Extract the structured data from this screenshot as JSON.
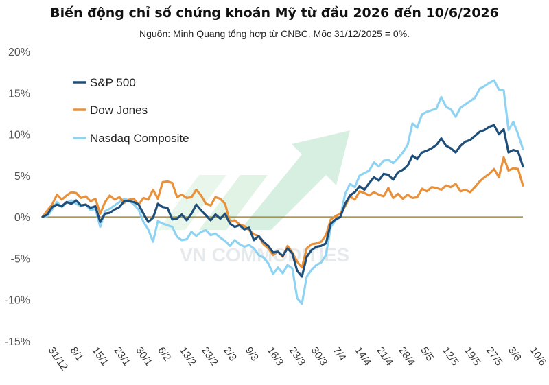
{
  "header": {
    "title": "Biến động chỉ số chứng khoán Mỹ từ đầu 2026 đến 10/6/2026",
    "subtitle": "Nguồn: Minh Quang tổng hợp từ CNBC. Mốc 31/12/2025 = 0%."
  },
  "watermark": "VN COMMODITIES",
  "chart_data": {
    "type": "line",
    "title": "Biến động chỉ số chứng khoán Mỹ từ đầu 2026 đến 10/6/2026",
    "xlabel": "",
    "ylabel": "",
    "ylim": [
      -15,
      20
    ],
    "yticks": [
      20,
      15,
      10,
      5,
      0,
      -5,
      -10,
      -15
    ],
    "ytick_labels": [
      "20%",
      "15%",
      "10%",
      "5%",
      "0%",
      "-5%",
      "-10%",
      "-15%"
    ],
    "x_tick_labels": [
      "31/12",
      "8/1",
      "15/1",
      "23/1",
      "30/1",
      "6/2",
      "13/2",
      "23/2",
      "2/3",
      "9/3",
      "16/3",
      "23/3",
      "30/3",
      "7/4",
      "14/4",
      "21/4",
      "28/4",
      "5/5",
      "12/5",
      "19/5",
      "27/5",
      "3/6",
      "10/6"
    ],
    "legend_position": "top-left",
    "grid": false,
    "series": [
      {
        "name": "S&P 500",
        "color": "#1f4e79",
        "values": [
          0,
          0.3,
          1.2,
          1.5,
          1.3,
          1.8,
          1.6,
          2.0,
          1.4,
          1.5,
          1.1,
          1.3,
          -0.6,
          0.4,
          0.5,
          0.9,
          1.2,
          1.9,
          1.9,
          1.8,
          1.5,
          0.4,
          -0.6,
          -0.1,
          1.6,
          1.2,
          1.1,
          -0.3,
          -0.2,
          0.3,
          -0.4,
          0.4,
          1.5,
          0.8,
          0.2,
          -0.4,
          0.3,
          -0.2,
          0.4,
          -0.8,
          -1.2,
          -1.0,
          -1.5,
          -1.3,
          -2.8,
          -2.3,
          -3.0,
          -3.5,
          -4.3,
          -4.2,
          -4.7,
          -3.8,
          -4.4,
          -6.5,
          -7.2,
          -4.8,
          -4.0,
          -3.6,
          -3.5,
          -3.2,
          -0.8,
          -0.3,
          0,
          1.6,
          2.6,
          3.0,
          3.7,
          3.3,
          4.1,
          4.8,
          4.4,
          5.2,
          5.1,
          4.5,
          5.4,
          5.7,
          6.2,
          7.4,
          7.0,
          7.8,
          8.0,
          8.3,
          8.7,
          9.5,
          8.6,
          8.3,
          7.8,
          8.6,
          9.1,
          9.3,
          9.8,
          10.3,
          10.5,
          10.9,
          11.1,
          10.0,
          10.6,
          7.8,
          8.1,
          7.9,
          6.1
        ]
      },
      {
        "name": "Dow Jones",
        "color": "#e8913a",
        "values": [
          0,
          0.8,
          1.5,
          2.7,
          2.1,
          2.6,
          3.0,
          2.9,
          2.3,
          2.5,
          1.9,
          2.2,
          0.4,
          1.8,
          2.6,
          2.1,
          2.4,
          1.7,
          2.1,
          2.2,
          1.5,
          2.3,
          2.1,
          3.3,
          2.2,
          4.2,
          4.3,
          4.1,
          2.4,
          2.7,
          2.3,
          2.4,
          3.3,
          2.6,
          1.6,
          1.4,
          2.4,
          2.2,
          1.6,
          -0.6,
          -0.4,
          -0.9,
          -1.1,
          -1.6,
          -2.1,
          -2.3,
          -3.3,
          -3.8,
          -4.6,
          -4.2,
          -4.8,
          -3.5,
          -4.3,
          -5.4,
          -6.1,
          -3.8,
          -3.3,
          -3.2,
          -3.0,
          -2.2,
          -0.3,
          0.1,
          0.4,
          1.3,
          2.5,
          2.1,
          3.1,
          2.9,
          2.6,
          3.0,
          2.7,
          2.5,
          3.5,
          2.3,
          2.8,
          2.2,
          2.7,
          2.3,
          2.4,
          3.4,
          3.1,
          3.6,
          3.5,
          3.3,
          3.8,
          3.6,
          4.0,
          3.1,
          3.3,
          3.0,
          3.6,
          4.3,
          4.8,
          5.2,
          5.8,
          4.8,
          7.2,
          5.6,
          5.9,
          5.8,
          3.8
        ]
      },
      {
        "name": "Nasdaq Composite",
        "color": "#8fd3f2",
        "values": [
          0,
          0.1,
          0.9,
          1.8,
          1.2,
          1.7,
          2.0,
          1.6,
          1.3,
          1.5,
          0.8,
          1.0,
          -1.2,
          0.7,
          1.0,
          1.4,
          1.8,
          2.2,
          2.0,
          1.5,
          0.9,
          -0.6,
          -1.5,
          -3.0,
          -0.5,
          -0.8,
          -1.0,
          -1.2,
          -2.4,
          -2.8,
          -2.7,
          -1.8,
          -2.3,
          -1.8,
          -1.6,
          -2.2,
          -2.0,
          -2.5,
          -2.9,
          -3.5,
          -2.8,
          -3.3,
          -3.6,
          -3.4,
          -3.8,
          -4.6,
          -4.9,
          -5.6,
          -6.9,
          -6.1,
          -6.8,
          -5.8,
          -6.2,
          -9.8,
          -10.5,
          -7.2,
          -6.4,
          -5.8,
          -5.5,
          -4.6,
          -1.2,
          -0.4,
          0,
          2.8,
          4.0,
          3.6,
          5.0,
          5.3,
          5.6,
          6.6,
          6.1,
          6.8,
          6.9,
          6.5,
          7.1,
          7.8,
          8.7,
          11.3,
          10.8,
          12.4,
          12.7,
          12.9,
          13.1,
          14.5,
          13.3,
          13.0,
          12.1,
          13.2,
          13.6,
          14.0,
          14.4,
          15.5,
          15.8,
          16.2,
          16.5,
          15.4,
          15.3,
          10.5,
          11.5,
          10.0,
          8.2
        ]
      }
    ]
  }
}
